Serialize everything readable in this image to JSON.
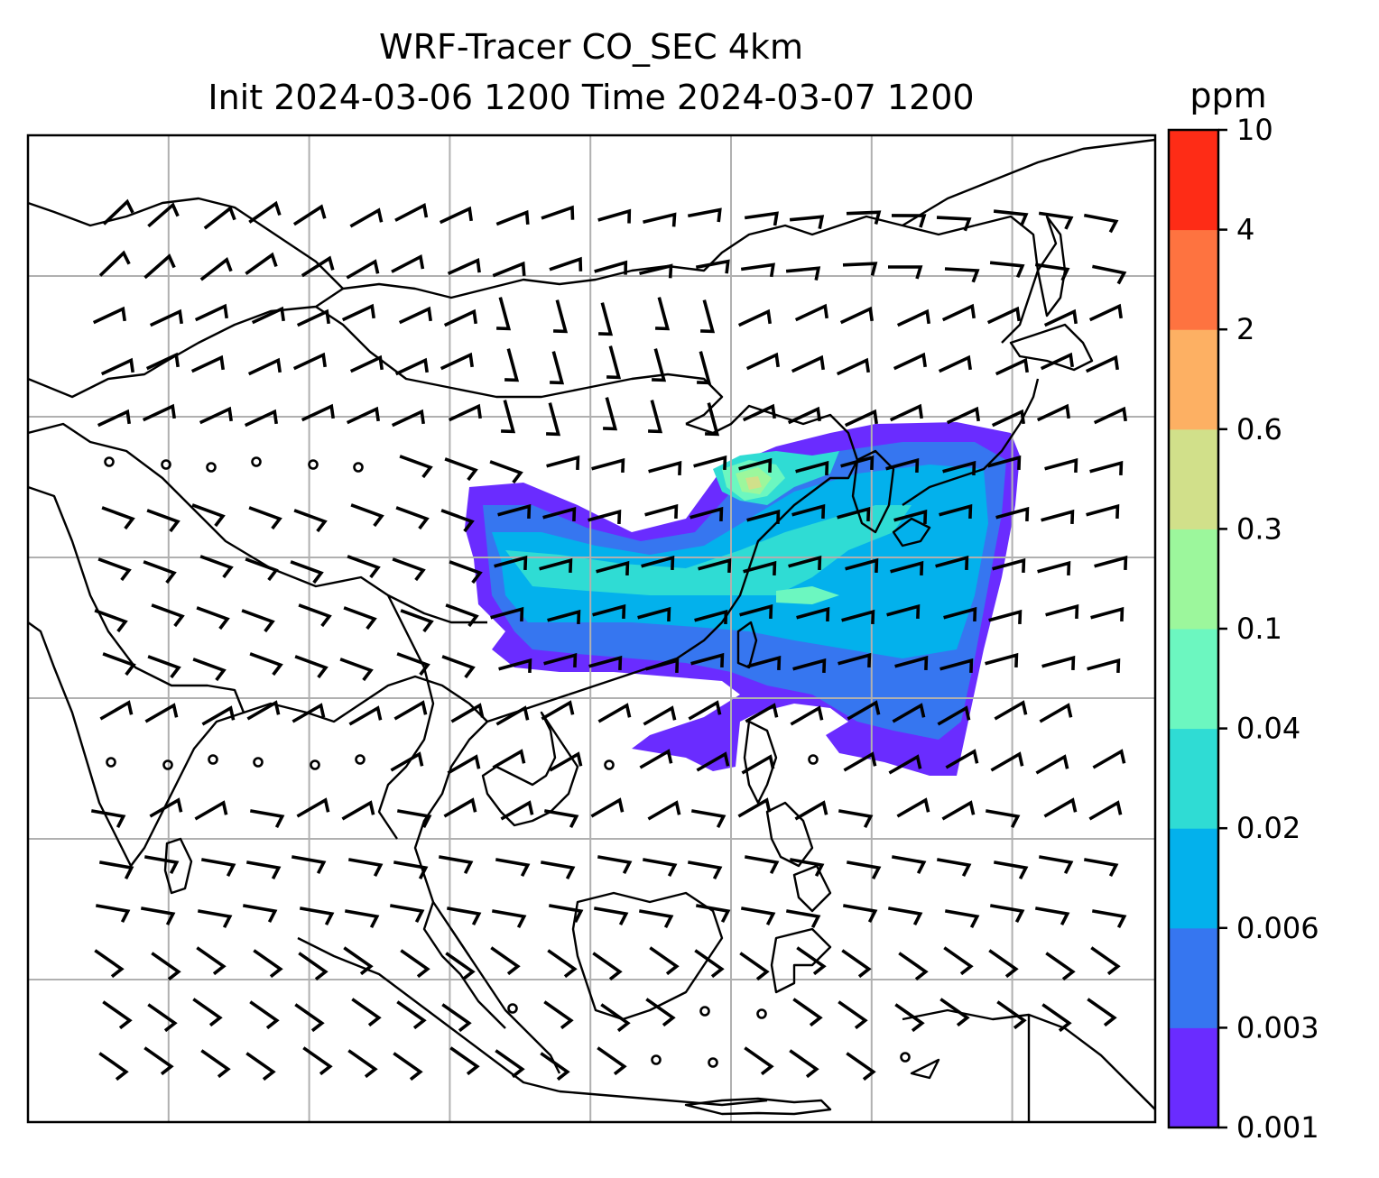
{
  "title": {
    "line1": "WRF-Tracer CO_SEC 4km",
    "line2": "Init 2024-03-06 1200 Time 2024-03-07 1200"
  },
  "colorbar": {
    "units": "ppm",
    "ticks": [
      "0.001",
      "0.003",
      "0.006",
      "0.02",
      "0.04",
      "0.1",
      "0.3",
      "0.6",
      "2",
      "4",
      "10"
    ],
    "colors": [
      "#6a2cff",
      "#3676f0",
      "#03b1ec",
      "#2fdcd4",
      "#6cf7c0",
      "#9cf79c",
      "#d1e08a",
      "#fdb063",
      "#fe7340",
      "#fe2c16"
    ]
  },
  "map": {
    "grid": true,
    "gridlines_x": 7,
    "gridlines_y": 6,
    "field": "CO_SEC tracer concentration (filled contours)",
    "overlay": "wind barbs"
  }
}
